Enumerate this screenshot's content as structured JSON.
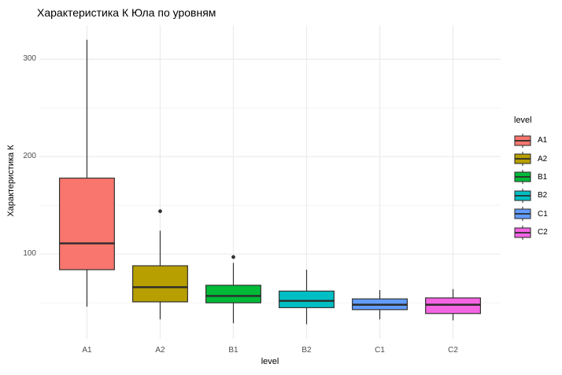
{
  "chart_data": {
    "type": "boxplot",
    "title": "Характеристика К Юла по уровням",
    "xlabel": "level",
    "ylabel": "Характеристика К",
    "categories": [
      "A1",
      "A2",
      "B1",
      "B2",
      "C1",
      "C2"
    ],
    "series": [
      {
        "name": "A1",
        "color": "#F8766D",
        "whisker_low": 46,
        "q1": 84,
        "median": 111,
        "q3": 178,
        "whisker_high": 320,
        "outliers": []
      },
      {
        "name": "A2",
        "color": "#B79F00",
        "whisker_low": 33,
        "q1": 51,
        "median": 66,
        "q3": 88,
        "whisker_high": 124,
        "outliers": [
          144
        ]
      },
      {
        "name": "B1",
        "color": "#00BA38",
        "whisker_low": 29,
        "q1": 50,
        "median": 57,
        "q3": 68,
        "whisker_high": 91,
        "outliers": [
          97
        ]
      },
      {
        "name": "B2",
        "color": "#00BFC4",
        "whisker_low": 28,
        "q1": 45,
        "median": 52,
        "q3": 62,
        "whisker_high": 84,
        "outliers": []
      },
      {
        "name": "C1",
        "color": "#619CFF",
        "whisker_low": 33,
        "q1": 43,
        "median": 48,
        "q3": 54,
        "whisker_high": 63,
        "outliers": []
      },
      {
        "name": "C2",
        "color": "#F564E3",
        "whisker_low": 32,
        "q1": 39,
        "median": 48,
        "q3": 55,
        "whisker_high": 64,
        "outliers": []
      }
    ],
    "y_ticks": [
      100,
      200,
      300
    ],
    "y_minor_ticks": [
      50,
      150,
      250
    ],
    "ylim": [
      13,
      335
    ],
    "legend": {
      "title": "level",
      "position": "right"
    },
    "grid": true,
    "background": "#FFFFFF",
    "gridline_major_color": "#EBEBEB",
    "gridline_minor_color": "#F2F2F2",
    "box_outline_color": "#333333",
    "median_color": "#2B2B2B",
    "outlier_color": "#333333",
    "tick_label_color": "#4D4D4D"
  }
}
